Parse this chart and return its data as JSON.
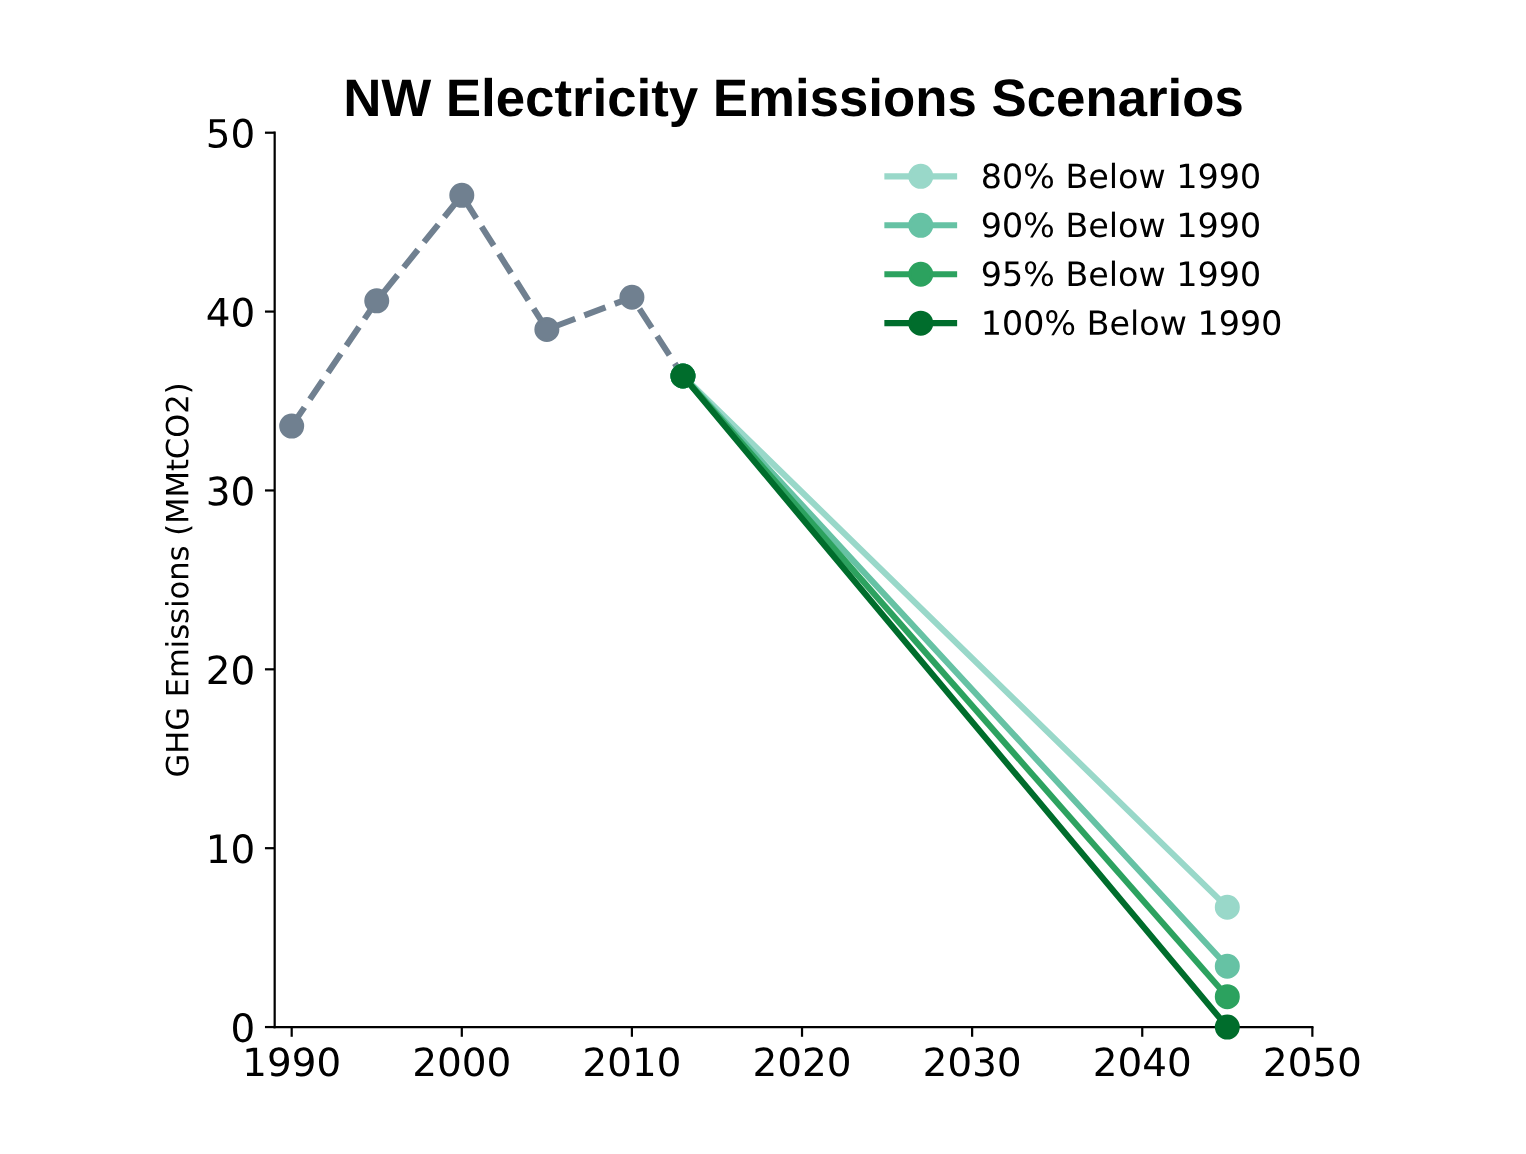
{
  "chart_data": {
    "type": "line",
    "title": "NW Electricity Emissions Scenarios",
    "ylabel": "GHG Emissions (MMtCO2)",
    "xlim": [
      1989,
      2050
    ],
    "ylim": [
      0,
      50
    ],
    "xticks": [
      1990,
      2000,
      2010,
      2020,
      2030,
      2040,
      2050
    ],
    "yticks": [
      0,
      10,
      20,
      30,
      40,
      50
    ],
    "grid": false,
    "legend": "top right",
    "marker": "circle",
    "series": [
      {
        "color": "#708090",
        "line_style": "dashed",
        "x": [
          1990,
          1995,
          2000,
          2005,
          2010,
          2013
        ],
        "values": [
          33.6,
          40.6,
          46.5,
          39.0,
          40.8,
          36.4
        ]
      },
      {
        "name": "80% Below 1990",
        "color": "#99d8c9",
        "line_style": "solid",
        "x": [
          2013,
          2045
        ],
        "values": [
          36.4,
          6.7
        ]
      },
      {
        "name": "90% Below 1990",
        "color": "#66c2a4",
        "line_style": "solid",
        "x": [
          2013,
          2045
        ],
        "values": [
          36.4,
          3.4
        ]
      },
      {
        "name": "95% Below 1990",
        "color": "#2ca25f",
        "line_style": "solid",
        "x": [
          2013,
          2045
        ],
        "values": [
          36.4,
          1.7
        ]
      },
      {
        "name": "100% Below 1990",
        "color": "#006d2c",
        "line_style": "solid",
        "x": [
          2013,
          2045
        ],
        "values": [
          36.4,
          0
        ]
      }
    ]
  }
}
